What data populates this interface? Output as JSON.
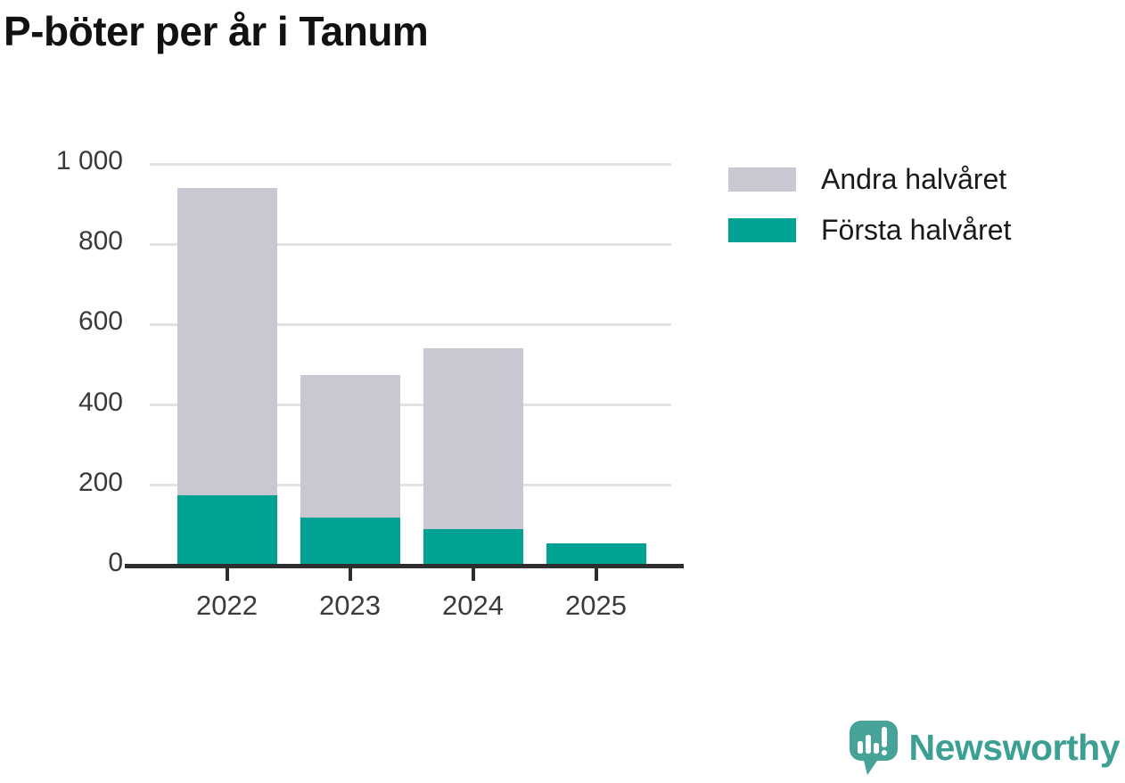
{
  "title": "P-böter per år i Tanum",
  "legend": {
    "items": [
      {
        "label": "Andra halvåret",
        "color": "#c9c7d1"
      },
      {
        "label": "Första halvåret",
        "color": "#00a294"
      }
    ]
  },
  "brand": {
    "name": "Newsworthy",
    "color": "#3b9f93"
  },
  "colors": {
    "first_half": "#00a294",
    "second_half": "#c9c7d1",
    "gridline": "#e2e2e2",
    "axis": "#2e2e2e",
    "tick_text": "#3a3a3a"
  },
  "chart_data": {
    "type": "bar",
    "stacked": true,
    "title": "P-böter per år i Tanum",
    "categories": [
      "2022",
      "2023",
      "2024",
      "2025"
    ],
    "series": [
      {
        "name": "Första halvåret",
        "color": "#00a294",
        "values": [
          175,
          120,
          90,
          55
        ]
      },
      {
        "name": "Andra halvåret",
        "color": "#c9c7d1",
        "values": [
          765,
          355,
          450,
          0
        ]
      }
    ],
    "totals": [
      940,
      475,
      540,
      55
    ],
    "xlabel": "",
    "ylabel": "",
    "ylim": [
      0,
      1000
    ],
    "yticks": [
      0,
      200,
      400,
      600,
      800,
      1000
    ],
    "ytick_labels": [
      "0",
      "200",
      "400",
      "600",
      "800",
      "1 000"
    ],
    "grid": "horizontal",
    "legend_position": "top-right"
  }
}
